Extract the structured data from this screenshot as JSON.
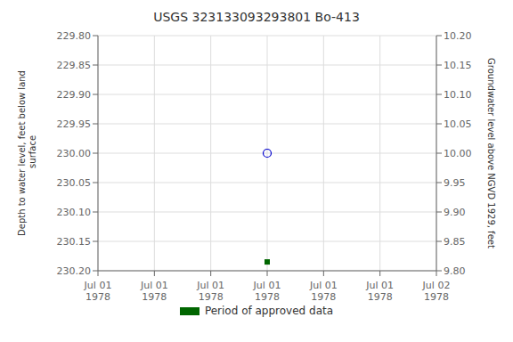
{
  "chart_data": {
    "type": "scatter",
    "title": "USGS 323133093293801 Bo-413",
    "categories": [
      "Jul 01\n1978",
      "Jul 01\n1978",
      "Jul 01\n1978",
      "Jul 01\n1978",
      "Jul 01\n1978",
      "Jul 01\n1978",
      "Jul 02\n1978"
    ],
    "series": [
      {
        "color": "#0000cc",
        "marker": "circle_open",
        "values": [
          null,
          null,
          null,
          230.0,
          null,
          null,
          null
        ]
      },
      {
        "name": "Period of approved data",
        "color": "#006600",
        "marker": "square",
        "values": [
          null,
          null,
          null,
          230.185,
          null,
          null,
          null
        ]
      }
    ],
    "ylabel": "Depth to water level, feet below land\n surface",
    "y2label": "Groundwater level above NGVD 1929, feet",
    "ylim": [
      230.2,
      229.8
    ],
    "yticks": [
      {
        "value": 229.8,
        "label": "229.80"
      },
      229.85,
      {
        "value": 229.9,
        "label": "229.90"
      },
      229.95,
      {
        "value": 230.0,
        "label": "230.00"
      },
      230.05,
      {
        "value": 230.1,
        "label": "230.10"
      },
      230.15,
      {
        "value": 230.2,
        "label": "230.20"
      }
    ],
    "y2lim": [
      9.8,
      10.2
    ],
    "y2ticks": [
      {
        "value": 10.2,
        "label": "10.20"
      },
      10.15,
      {
        "value": 10.1,
        "label": "10.10"
      },
      10.05,
      {
        "value": 10.0,
        "label": "10.00"
      },
      9.95,
      {
        "value": 9.9,
        "label": "9.90"
      },
      9.85,
      {
        "value": 9.8,
        "label": "9.80"
      }
    ],
    "grid": true,
    "legend": "bottom"
  }
}
